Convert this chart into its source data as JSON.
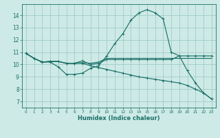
{
  "bg_color": "#ceeae6",
  "grid_color": "#a0ccc8",
  "line_color": "#1a7068",
  "xlabel": "Humidex (Indice chaleur)",
  "xlim": [
    -0.5,
    23.5
  ],
  "ylim": [
    6.5,
    14.9
  ],
  "yticks": [
    7,
    8,
    9,
    10,
    11,
    12,
    13,
    14
  ],
  "xticks": [
    0,
    1,
    2,
    3,
    4,
    5,
    6,
    7,
    8,
    9,
    10,
    11,
    12,
    13,
    14,
    15,
    16,
    17,
    18,
    19,
    20,
    21,
    22,
    23
  ],
  "line1_x": [
    0,
    1,
    2,
    3,
    4,
    5,
    6,
    7,
    8,
    9,
    10,
    11,
    12,
    13,
    14,
    15,
    16,
    17,
    18,
    19,
    20,
    21,
    22,
    23
  ],
  "line1_y": [
    10.9,
    10.5,
    10.2,
    10.2,
    9.8,
    9.2,
    9.2,
    9.3,
    9.7,
    9.9,
    10.7,
    11.7,
    12.5,
    13.6,
    14.2,
    14.45,
    14.2,
    13.7,
    11.0,
    10.7,
    9.5,
    8.5,
    7.7,
    7.2
  ],
  "line2_x": [
    0,
    1,
    2,
    3,
    4,
    5,
    6,
    7,
    8,
    9,
    10,
    11,
    12,
    13,
    14,
    15,
    16,
    17,
    18,
    19,
    20,
    21,
    22,
    23
  ],
  "line2_y": [
    10.9,
    10.5,
    10.2,
    10.25,
    10.25,
    10.1,
    10.1,
    10.15,
    10.1,
    10.2,
    10.5,
    10.5,
    10.5,
    10.5,
    10.5,
    10.5,
    10.5,
    10.5,
    10.5,
    10.5,
    10.5,
    10.5,
    10.5,
    10.5
  ],
  "line3_x": [
    0,
    1,
    2,
    3,
    4,
    5,
    6,
    7,
    8,
    9,
    10,
    11,
    12,
    13,
    14,
    15,
    16,
    17,
    18,
    19,
    20,
    21,
    22,
    23
  ],
  "line3_y": [
    10.9,
    10.5,
    10.2,
    10.25,
    10.25,
    10.1,
    10.1,
    10.1,
    9.9,
    9.75,
    9.6,
    9.45,
    9.3,
    9.15,
    9.0,
    8.9,
    8.8,
    8.7,
    8.6,
    8.5,
    8.3,
    8.0,
    7.7,
    7.2
  ],
  "line4_x": [
    0,
    1,
    2,
    3,
    4,
    5,
    6,
    7,
    8,
    9,
    10,
    11,
    12,
    13,
    14,
    15,
    16,
    17,
    18,
    19,
    20,
    21,
    22,
    23
  ],
  "line4_y": [
    10.9,
    10.5,
    10.2,
    10.25,
    10.25,
    10.1,
    10.1,
    10.3,
    10.0,
    10.1,
    10.4,
    10.4,
    10.4,
    10.4,
    10.4,
    10.4,
    10.4,
    10.4,
    10.4,
    10.7,
    10.7,
    10.7,
    10.7,
    10.7
  ]
}
